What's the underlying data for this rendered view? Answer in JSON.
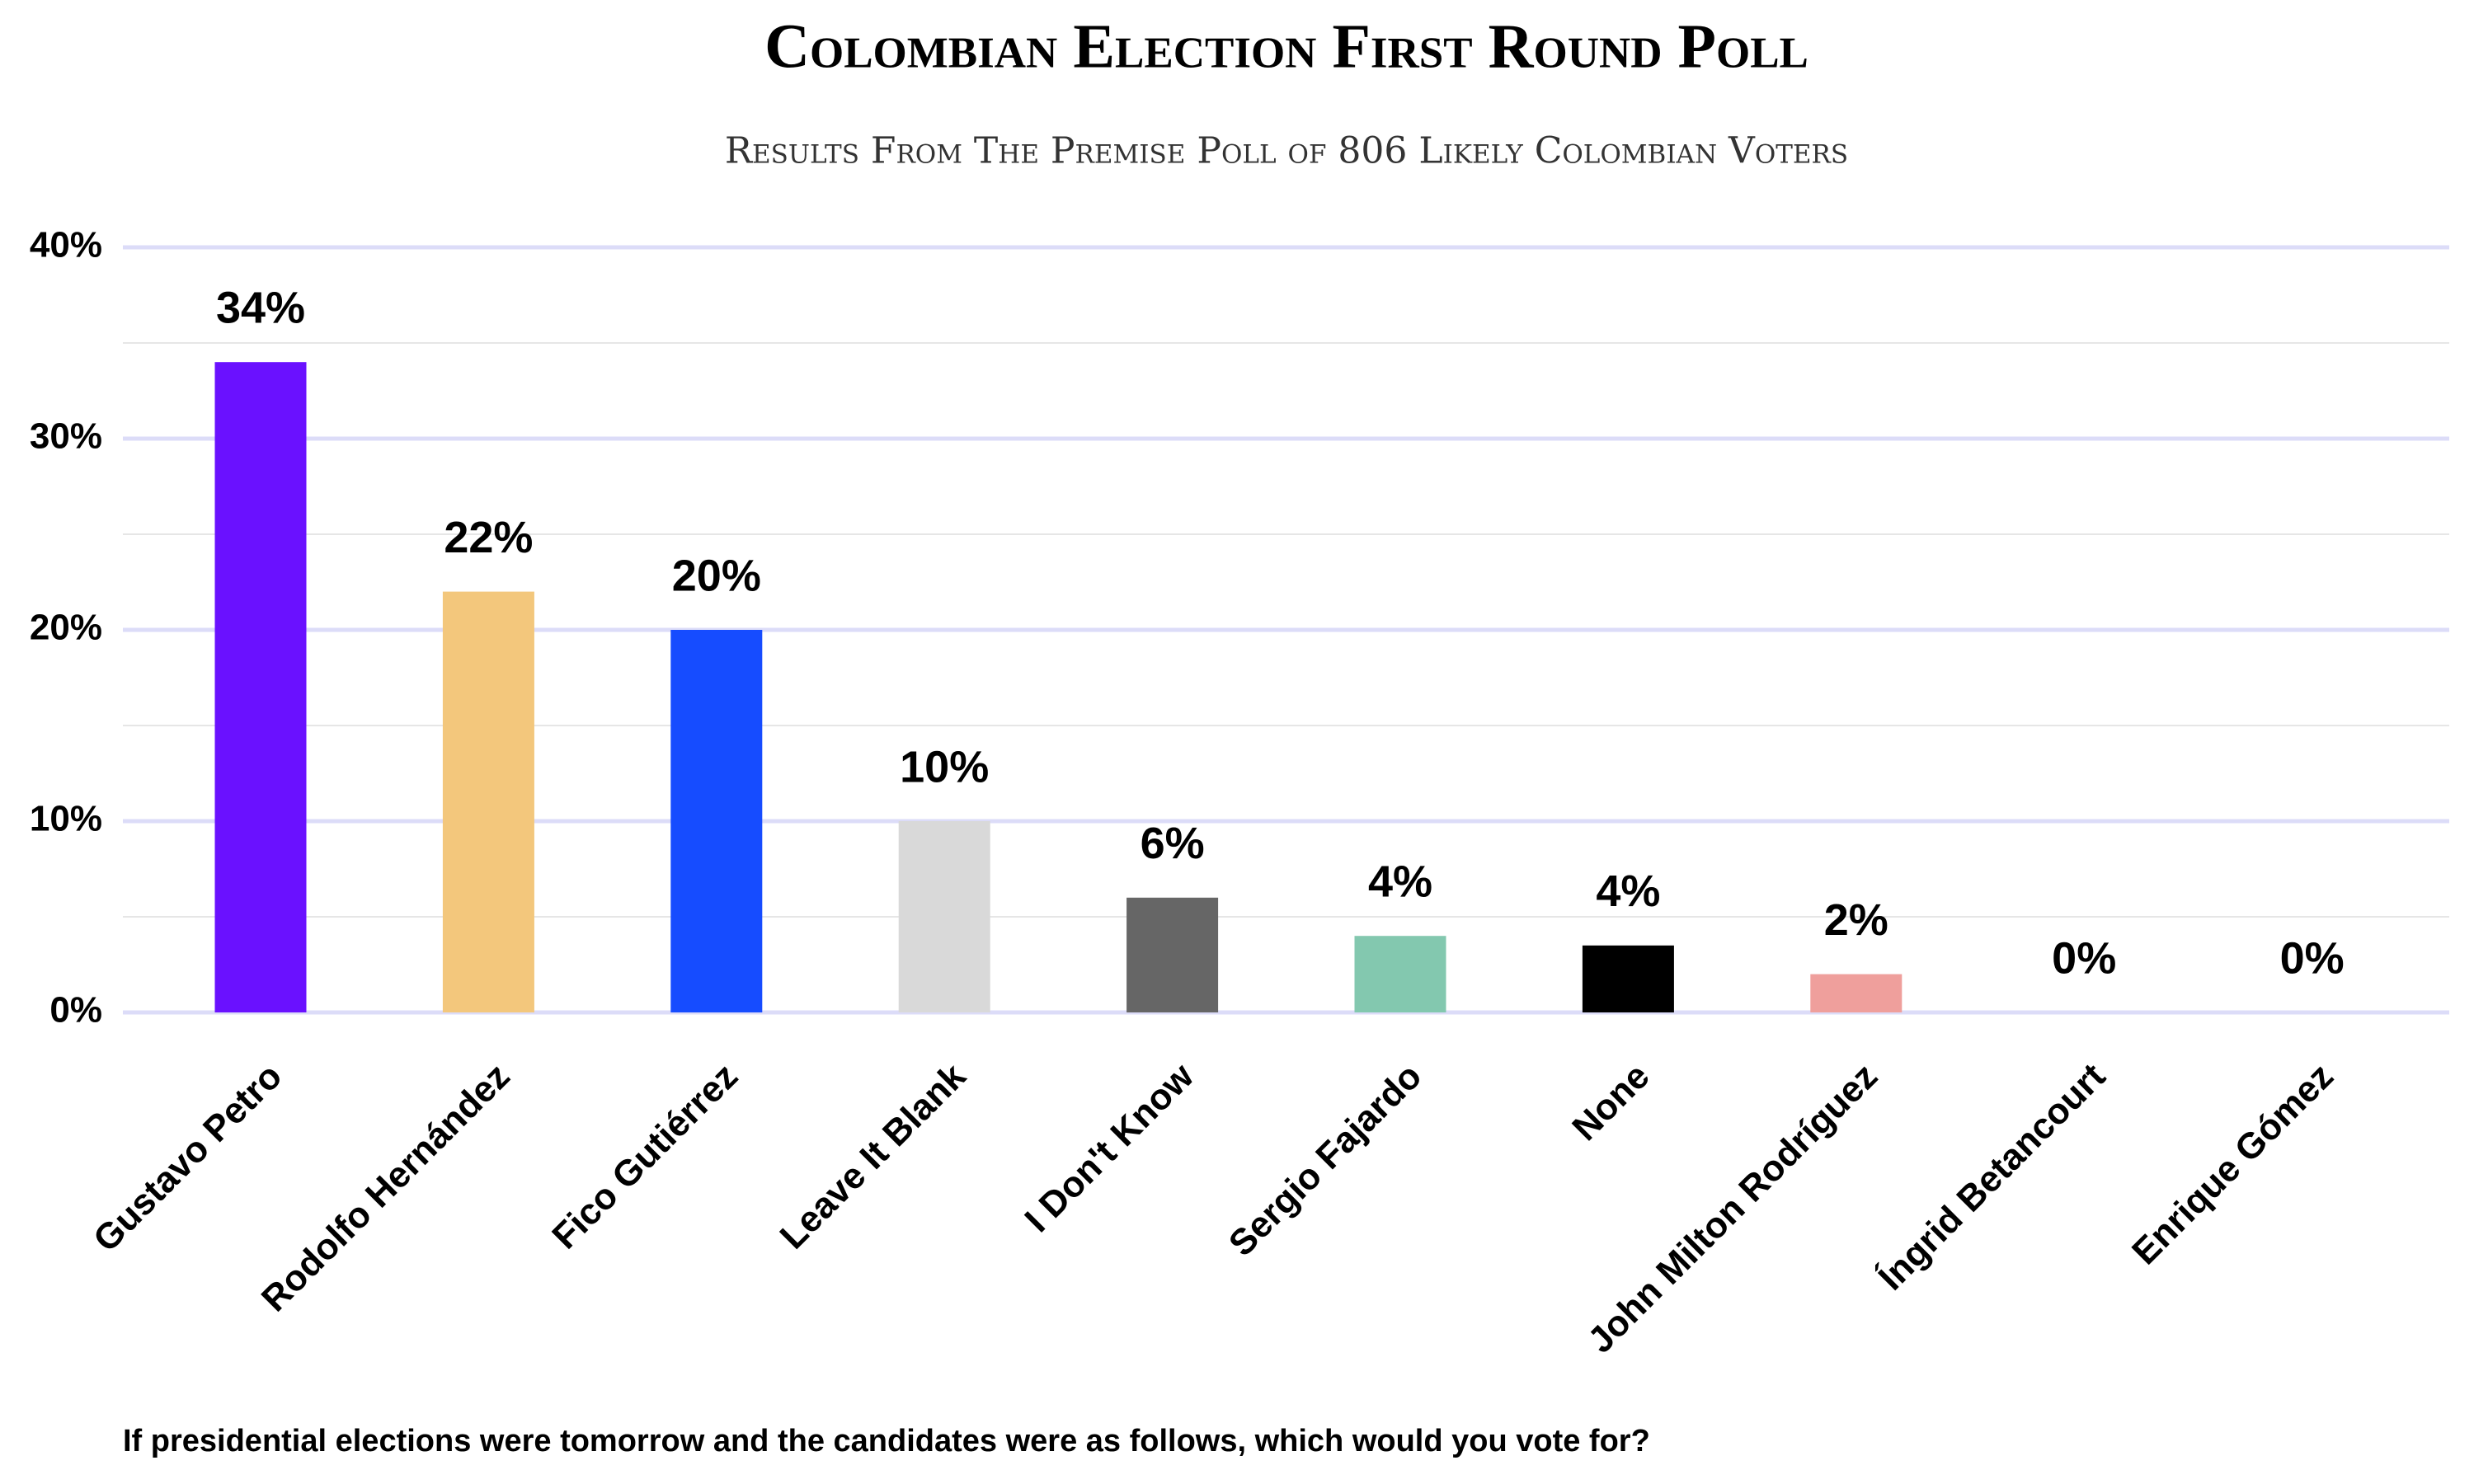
{
  "chart_data": {
    "type": "bar",
    "title": "Colombian Election First Round Poll",
    "subtitle": "Results From The Premise Poll of 806 Likely Colombian Voters",
    "footnote": "If presidential elections were tomorrow and the candidates were as follows, which would you vote for?",
    "categories": [
      "Gustavo Petro",
      "Rodolfo Hernández",
      "Fico Gutiérrez",
      "Leave It Blank",
      "I Don't Know",
      "Sergio Fajardo",
      "None",
      "John Milton Rodríguez",
      "Íngrid Betancourt",
      "Enrique Gómez"
    ],
    "values": [
      34,
      22,
      20,
      10,
      6,
      4,
      3.5,
      2,
      0,
      0
    ],
    "value_labels": [
      "34%",
      "22%",
      "20%",
      "10%",
      "6%",
      "4%",
      "4%",
      "2%",
      "0%",
      "0%"
    ],
    "colors": [
      "#6a11ff",
      "#f3c77c",
      "#164cff",
      "#d9d9d9",
      "#666666",
      "#83c8af",
      "#000000",
      "#ef9f9c",
      "#999999",
      "#999999"
    ],
    "ylim": [
      0,
      40
    ],
    "yticks": [
      {
        "value": 0,
        "label": "0%"
      },
      {
        "value": 10,
        "label": "10%"
      },
      {
        "value": 20,
        "label": "20%"
      },
      {
        "value": 30,
        "label": "30%"
      },
      {
        "value": 40,
        "label": "40%"
      }
    ],
    "minor_yticks": [
      5,
      15,
      25,
      35
    ],
    "grid": true
  }
}
